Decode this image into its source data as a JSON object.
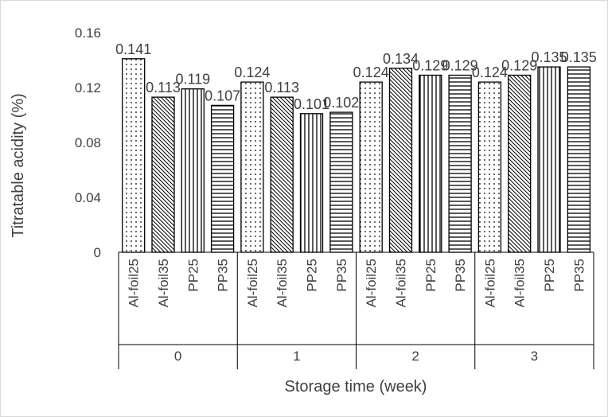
{
  "chart_data": {
    "type": "bar",
    "xlabel": "Storage time (week)",
    "ylabel": "Titratable acidity (%)",
    "ylim": [
      0,
      0.16
    ],
    "yticks": [
      "0",
      "0.04",
      "0.08",
      "0.12",
      "0.16"
    ],
    "grid": false,
    "legend": "none",
    "groups": [
      {
        "label": "0",
        "categories": [
          "Al-foil25",
          "Al-foil35",
          "PP25",
          "PP35"
        ],
        "values": [
          0.141,
          0.113,
          0.119,
          0.107
        ],
        "labels": [
          "0.141",
          "0.113",
          "0.119",
          "0.107"
        ]
      },
      {
        "label": "1",
        "categories": [
          "Al-foil25",
          "Al-foil35",
          "PP25",
          "PP35"
        ],
        "values": [
          0.124,
          0.113,
          0.101,
          0.102
        ],
        "labels": [
          "0.124",
          "0.113",
          "0.101",
          "0.102"
        ]
      },
      {
        "label": "2",
        "categories": [
          "Al-foil25",
          "Al-foil35",
          "PP25",
          "PP35"
        ],
        "values": [
          0.124,
          0.134,
          0.129,
          0.129
        ],
        "labels": [
          "0.124",
          "0.134",
          "0.129",
          "0.129"
        ]
      },
      {
        "label": "3",
        "categories": [
          "Al-foil25",
          "Al-foil35",
          "PP25",
          "PP35"
        ],
        "values": [
          0.124,
          0.129,
          0.135,
          0.135
        ],
        "labels": [
          "0.124",
          "0.129",
          "0.135",
          "0.135"
        ]
      }
    ],
    "patterns": [
      "dots",
      "diagonal",
      "vertical",
      "horizontal"
    ]
  }
}
